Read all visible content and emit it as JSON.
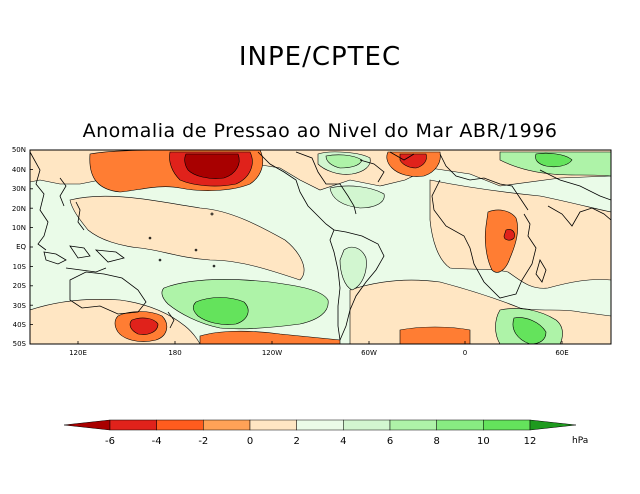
{
  "header": {
    "agency": "INPE/CPTEC",
    "title": "Anomalia de Pressao ao Nivel do Mar ABR/1996"
  },
  "map": {
    "lat_labels": [
      "50N",
      "40N",
      "30N",
      "20N",
      "10N",
      "EQ",
      "10S",
      "20S",
      "30S",
      "40S",
      "50S"
    ],
    "lon_labels": [
      "120E",
      "180",
      "120W",
      "60W",
      "0",
      "60E"
    ]
  },
  "legend": {
    "unit": "hPa",
    "ticks": [
      "-6",
      "-4",
      "-2",
      "0",
      "2",
      "4",
      "6",
      "8",
      "10",
      "12"
    ],
    "colors": {
      "below_-6": "#a80000",
      "-6_-5": "#e0221b",
      "-5_-4": "#ff5c1e",
      "-4_-3": "#ff7d33",
      "-3_-2": "#ffa257",
      "-2_-1": "#ffc78e",
      "-1_0": "#ffe6c3",
      "0_1": "#eafbe8",
      "1_2": "#d2f6d0",
      "2_3": "#aef3a8",
      "3_4": "#88ec82",
      "4_5": "#64e35c",
      "above_5": "#1e9a1e"
    }
  }
}
